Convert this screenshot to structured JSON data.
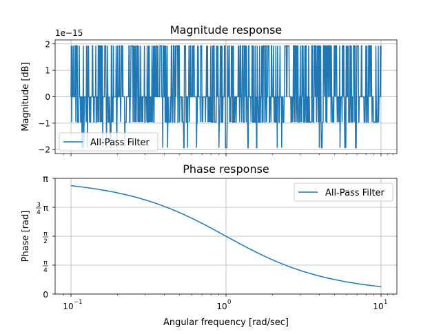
{
  "chart_data": [
    {
      "type": "line",
      "title": "Magnitude response",
      "xlabel": "",
      "ylabel": "Magnitude [dB]",
      "xscale": "log",
      "xlim": [
        0.1,
        10
      ],
      "ylim": [
        -2.15,
        2.15
      ],
      "offset_text": "1e−15",
      "yticks": [
        -2,
        -1,
        0,
        1,
        2
      ],
      "ytick_labels": [
        "−2",
        "−1",
        "0",
        "1",
        "2"
      ],
      "grid": true,
      "legend": "lower-left",
      "series": [
        {
          "name": "All-Pass Filter",
          "color": "#1f77b4",
          "pattern": "numerical round-off noise alternating between levels",
          "levels": [
            -1.93,
            -0.96,
            0,
            1.93
          ],
          "x_range": [
            0.1,
            10
          ]
        }
      ]
    },
    {
      "type": "line",
      "title": "Phase response",
      "xlabel": "Angular frequency [rad/sec]",
      "ylabel": "Phase [rad]",
      "xscale": "log",
      "xlim": [
        0.083,
        12.1
      ],
      "ylim": [
        0,
        3.14159
      ],
      "xticks": [
        0.1,
        1,
        10
      ],
      "ytick_labels": [
        "0",
        "π/4",
        "π/2",
        "3/4 π",
        "π"
      ],
      "grid": true,
      "legend": "upper-right",
      "series": [
        {
          "name": "All-Pass Filter",
          "color": "#1f77b4",
          "x": [
            0.1,
            0.15,
            0.2,
            0.3,
            0.4,
            0.5,
            0.7,
            1.0,
            1.5,
            2.0,
            3.0,
            5.0,
            7.0,
            10.0
          ],
          "y": [
            2.94,
            2.84,
            2.75,
            2.55,
            2.38,
            2.21,
            1.93,
            1.57,
            1.18,
            0.93,
            0.64,
            0.39,
            0.28,
            0.2
          ]
        }
      ]
    }
  ],
  "ticks": {
    "x_major": [
      "10",
      "10",
      "10"
    ],
    "x_exponents": [
      "−1",
      "0",
      "1"
    ],
    "phase_y": {
      "zero": "0",
      "pi": "π",
      "pi_over_4_num": "π",
      "pi_over_4_den": "4",
      "pi_over_2_num": "π",
      "pi_over_2_den": "2",
      "three_quarter_num": "3",
      "three_quarter_den": "4",
      "three_quarter_pi": "π"
    }
  }
}
